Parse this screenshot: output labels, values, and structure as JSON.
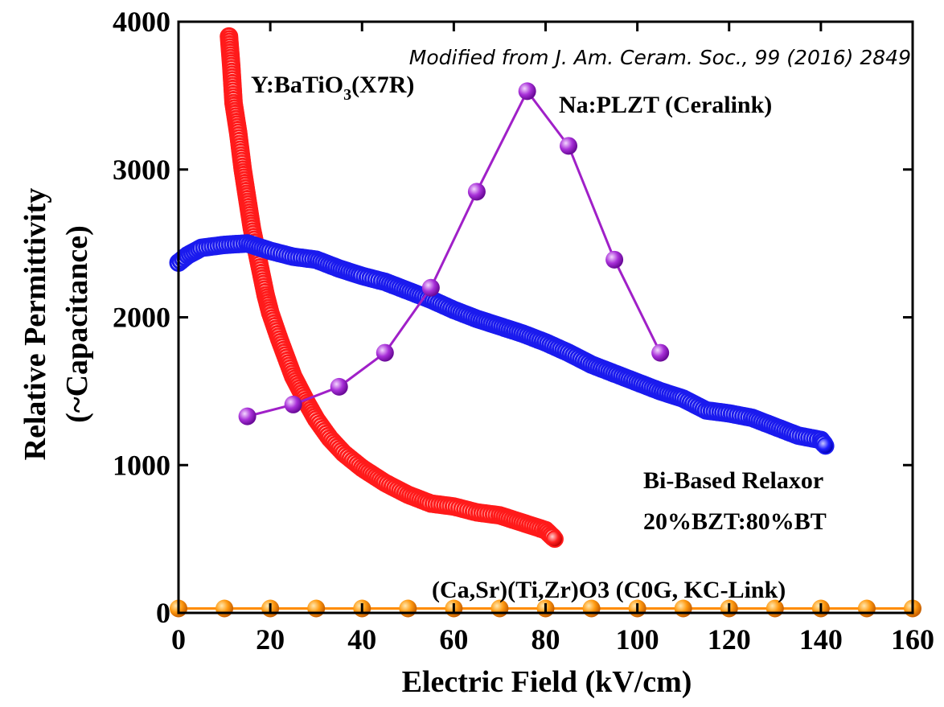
{
  "chart_data": {
    "type": "scatter",
    "source_note": "Modified from J. Am. Ceram. Soc., 99 (2016) 2849",
    "xlabel": "Electric Field (kV/cm)",
    "ylabel_line1": "Relative Permittivity",
    "ylabel_line2": "(~Capacitance)",
    "xlim": [
      0,
      160
    ],
    "ylim": [
      0,
      4000
    ],
    "x_ticks": [
      "0",
      "20",
      "40",
      "60",
      "80",
      "100",
      "120",
      "140",
      "160"
    ],
    "y_ticks": [
      "0",
      "1000",
      "2000",
      "3000",
      "4000"
    ],
    "grid": false,
    "annotations": {
      "x7r": "Y:BaTiO3(X7R)",
      "plzt": "Na:PLZT (Ceralink)",
      "relaxor_line1": "Bi-Based Relaxor",
      "relaxor_line2": "20%BZT:80%BT",
      "c0g": "(Ca,Sr)(Ti,Zr)O3 (C0G, KC-Link)"
    },
    "series": [
      {
        "name": "Y:BaTiO3(X7R)",
        "color": "#ff1a1a",
        "mode": "dense",
        "x": [
          11,
          11.5,
          12,
          13,
          14,
          15,
          16,
          17,
          18,
          19,
          20,
          22,
          25,
          28,
          30,
          33,
          36,
          40,
          45,
          50,
          55,
          60,
          65,
          70,
          75,
          80,
          82
        ],
        "y": [
          3900,
          3700,
          3450,
          3250,
          3000,
          2800,
          2600,
          2450,
          2300,
          2150,
          2030,
          1850,
          1600,
          1420,
          1310,
          1180,
          1080,
          980,
          880,
          800,
          740,
          720,
          680,
          660,
          610,
          560,
          500
        ]
      },
      {
        "name": "Bi-Based Relaxor 20%BZT:80%BT",
        "color": "#1a1aee",
        "mode": "dense",
        "x": [
          0,
          2,
          5,
          10,
          15,
          20,
          25,
          30,
          35,
          40,
          45,
          50,
          55,
          60,
          65,
          70,
          75,
          80,
          85,
          90,
          95,
          100,
          105,
          110,
          115,
          120,
          125,
          130,
          135,
          140,
          141
        ],
        "y": [
          2370,
          2420,
          2470,
          2490,
          2500,
          2450,
          2410,
          2390,
          2330,
          2280,
          2240,
          2180,
          2120,
          2050,
          1990,
          1940,
          1890,
          1830,
          1760,
          1680,
          1620,
          1560,
          1500,
          1450,
          1370,
          1350,
          1320,
          1260,
          1200,
          1170,
          1130
        ]
      },
      {
        "name": "Na:PLZT (Ceralink)",
        "color": "#a020c8",
        "mode": "markers",
        "x": [
          15,
          25,
          35,
          45,
          55,
          65,
          76,
          85,
          95,
          105
        ],
        "y": [
          1330,
          1410,
          1530,
          1760,
          2200,
          2850,
          3530,
          3160,
          2390,
          1760
        ]
      },
      {
        "name": "(Ca,Sr)(Ti,Zr)O3 (C0G, KC-Link)",
        "color": "#ff8c00",
        "mode": "markers",
        "x": [
          0,
          10,
          20,
          30,
          40,
          50,
          60,
          70,
          80,
          90,
          100,
          110,
          120,
          130,
          140,
          150,
          160
        ],
        "y": [
          30,
          30,
          30,
          30,
          30,
          30,
          30,
          30,
          30,
          30,
          30,
          30,
          30,
          30,
          30,
          30,
          30
        ]
      }
    ]
  }
}
